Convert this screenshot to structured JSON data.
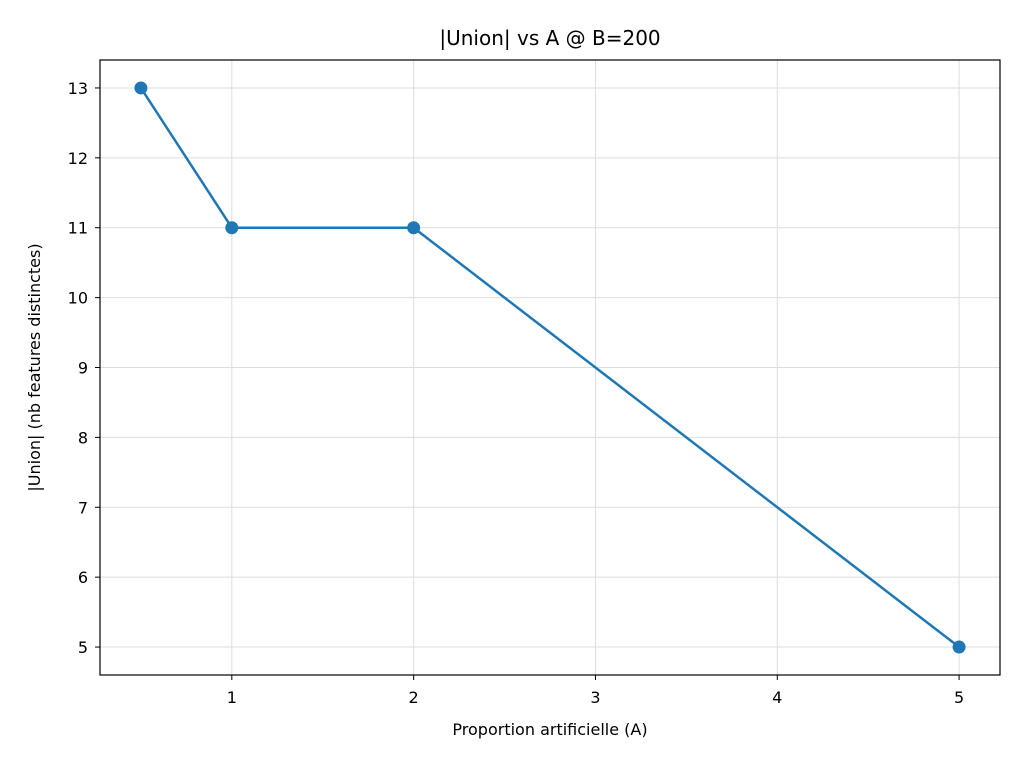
{
  "chart_data": {
    "type": "line",
    "title": "|Union| vs A @ B=200",
    "xlabel": "Proportion artificielle (A)",
    "ylabel": "|Union| (nb features distinctes)",
    "x": [
      0.5,
      1,
      2,
      5
    ],
    "series": [
      {
        "values": [
          13,
          11,
          11,
          5
        ]
      }
    ],
    "xticks": [
      1,
      2,
      3,
      4,
      5
    ],
    "yticks": [
      5,
      6,
      7,
      8,
      9,
      10,
      11,
      12,
      13
    ],
    "xlim": [
      0.275,
      5.225
    ],
    "ylim": [
      4.6,
      13.4
    ],
    "grid": true,
    "colors": {
      "line": "#1f77b4",
      "grid": "#dddddd",
      "axes": "#000000"
    }
  }
}
